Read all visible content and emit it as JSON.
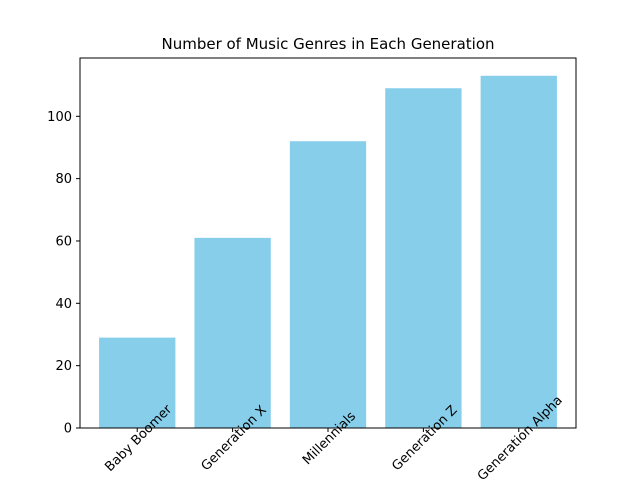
{
  "chart_data": {
    "type": "bar",
    "title": "Number of Music Genres in Each Generation",
    "xlabel": "",
    "ylabel": "",
    "categories": [
      "Baby Boomer",
      "Generation X",
      "Millennials",
      "Generation Z",
      "Generation Alpha"
    ],
    "values": [
      29,
      61,
      92,
      109,
      113
    ],
    "ylim": [
      0,
      118.7
    ],
    "yticks": [
      0,
      20,
      40,
      60,
      80,
      100
    ],
    "bar_color": "#87CEEB",
    "grid": false,
    "legend": "none"
  }
}
